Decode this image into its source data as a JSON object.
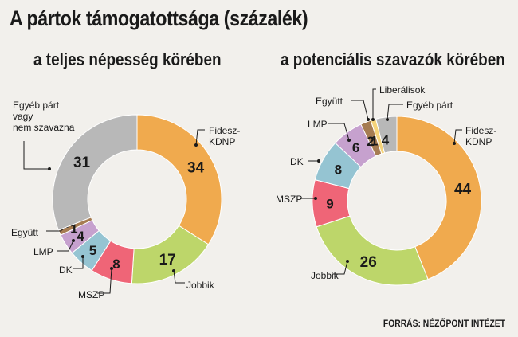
{
  "title": "A pártok támogatottsága (százalék)",
  "source": "FORRÁS: NÉZŐPONT INTÉZET",
  "chart_data": [
    {
      "type": "pie",
      "title": "a teljes népesség körében",
      "categories": [
        "Fidesz-KDNP",
        "Jobbik",
        "MSZP",
        "DK",
        "LMP",
        "Együtt",
        "Egyéb párt vagy nem szavazna"
      ],
      "values": [
        34,
        17,
        8,
        5,
        4,
        1,
        31
      ],
      "label_lines": [
        [
          "Fidesz-",
          "KDNP"
        ],
        [
          "Jobbik"
        ],
        [
          "MSZP"
        ],
        [
          "DK"
        ],
        [
          "LMP"
        ],
        [
          "Együtt"
        ],
        [
          "Egyéb párt",
          "vagy",
          "nem szavazna"
        ]
      ],
      "colors": [
        "#f0aa4e",
        "#bdd66a",
        "#ef6577",
        "#95c4d2",
        "#c6a1ce",
        "#a67c52",
        "#b8b8b8"
      ]
    },
    {
      "type": "pie",
      "title": "a potenciális szavazók körében",
      "categories": [
        "Fidesz-KDNP",
        "Jobbik",
        "MSZP",
        "DK",
        "LMP",
        "Együtt",
        "Liberálisok",
        "Egyéb párt"
      ],
      "values": [
        44,
        26,
        9,
        8,
        6,
        2,
        1,
        4
      ],
      "label_lines": [
        [
          "Fidesz-",
          "KDNP"
        ],
        [
          "Jobbik"
        ],
        [
          "MSZP"
        ],
        [
          "DK"
        ],
        [
          "LMP"
        ],
        [
          "Együtt"
        ],
        [
          "Liberálisok"
        ],
        [
          "Egyéb párt"
        ]
      ],
      "colors": [
        "#f0aa4e",
        "#bdd66a",
        "#ef6577",
        "#95c4d2",
        "#c6a1ce",
        "#a67c52",
        "#f5d37a",
        "#b8b8b8"
      ]
    }
  ]
}
